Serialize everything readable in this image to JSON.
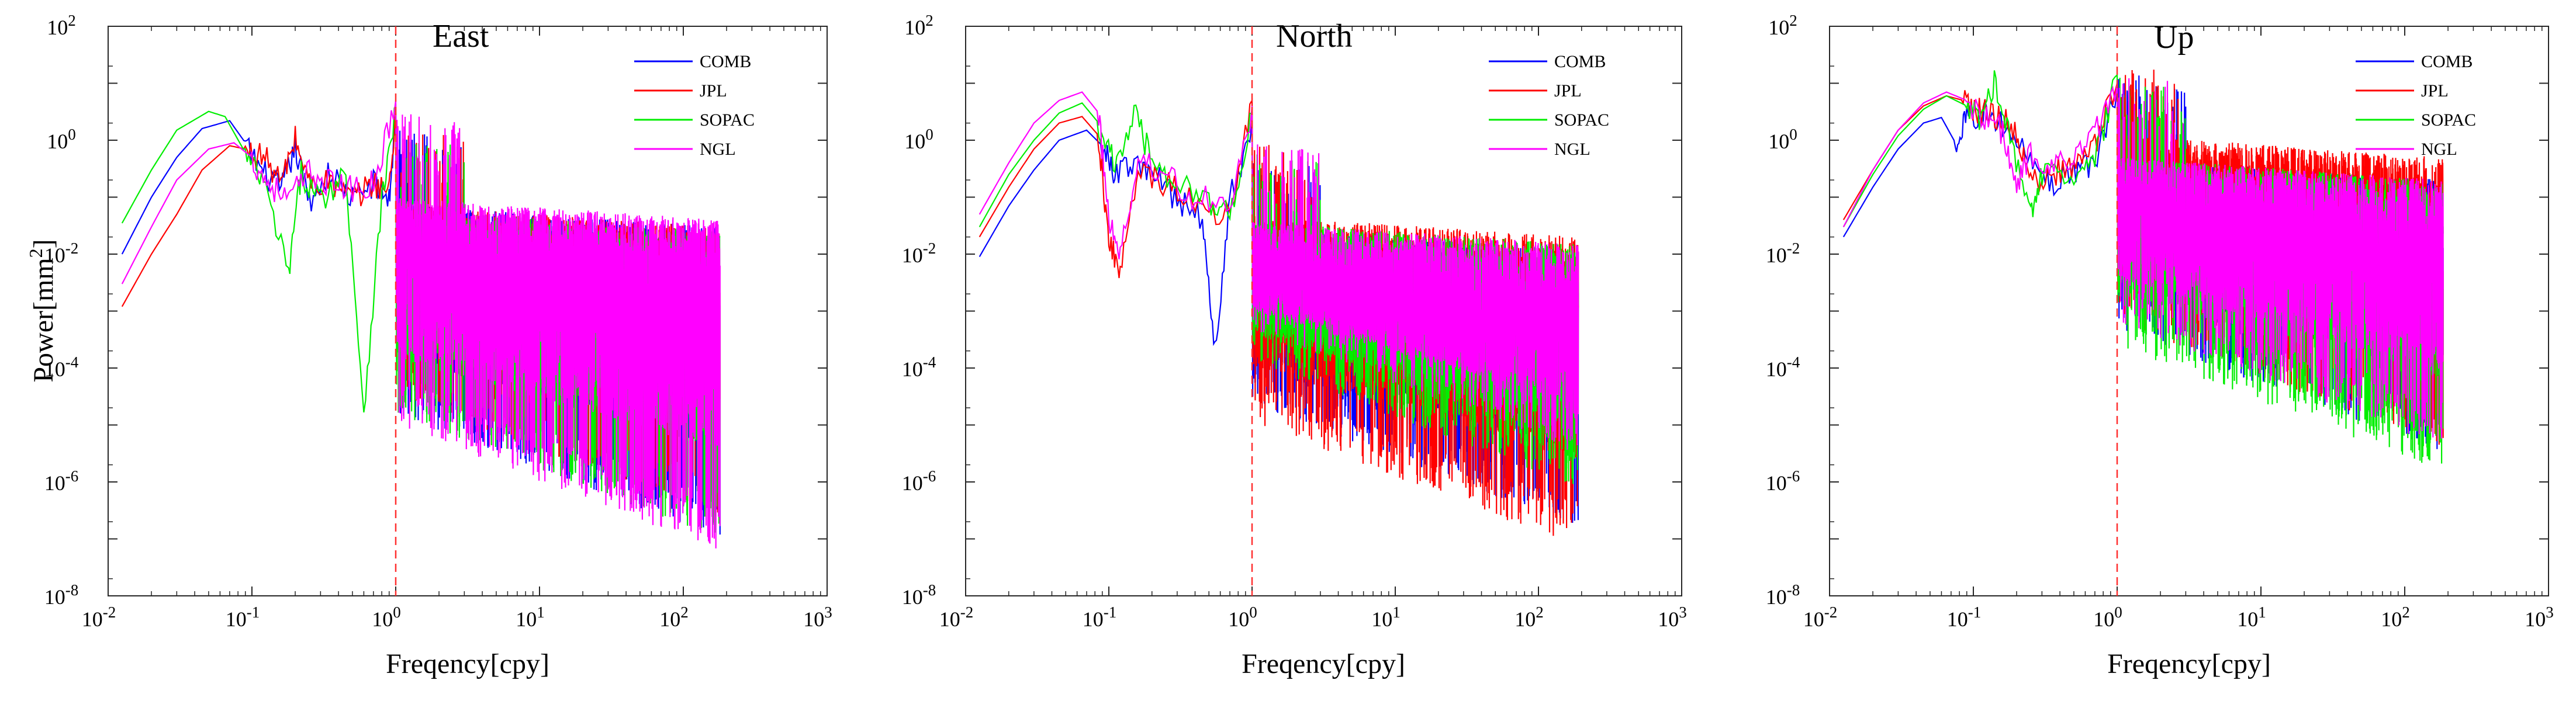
{
  "figure": {
    "ylabel_base": "Power[mm",
    "ylabel_exp": "2",
    "ylabel_end": "]",
    "xlabel": "Freqency[cpy]"
  },
  "chart_data": [
    {
      "type": "line",
      "title": "East",
      "xlabel": "Freqency[cpy]",
      "ylabel": "Power[mm^2]",
      "xscale": "log",
      "yscale": "log",
      "xlim": [
        0.01,
        1000
      ],
      "ylim": [
        1e-08,
        100
      ],
      "xticks": [
        "10^-2",
        "10^-1",
        "10^0",
        "10^1",
        "10^2",
        "10^3"
      ],
      "yticks": [
        "10^-8",
        "10^-6",
        "10^-4",
        "10^-2",
        "10^0",
        "10^2"
      ],
      "annotations": [
        {
          "type": "vertical-dashed-line",
          "x": 1,
          "color": "#ff3030"
        }
      ],
      "legend_position": "top-right",
      "series": [
        {
          "name": "COMB",
          "color": "#0000ff",
          "low_freq": [
            [
              0.0125,
              0.01
            ],
            [
              0.02,
              0.1
            ],
            [
              0.03,
              0.5
            ],
            [
              0.045,
              1.6
            ],
            [
              0.07,
              2.2
            ],
            [
              0.09,
              0.9
            ],
            [
              0.12,
              0.3
            ],
            [
              0.16,
              0.15
            ],
            [
              0.2,
              0.8
            ],
            [
              0.25,
              0.1
            ],
            [
              0.35,
              0.3
            ],
            [
              0.5,
              0.1
            ],
            [
              0.7,
              0.2
            ],
            [
              0.9,
              0.1
            ],
            [
              1.0,
              3
            ]
          ],
          "noise_mid": 0.005,
          "noise_top": 0.03,
          "noise_min": 1e-07,
          "fmax": 180
        },
        {
          "name": "JPL",
          "color": "#ff0000",
          "low_freq": [
            [
              0.0125,
              0.0012
            ],
            [
              0.02,
              0.01
            ],
            [
              0.03,
              0.05
            ],
            [
              0.045,
              0.3
            ],
            [
              0.07,
              0.8
            ],
            [
              0.09,
              0.7
            ],
            [
              0.12,
              0.6
            ],
            [
              0.16,
              0.2
            ],
            [
              0.2,
              1.2
            ],
            [
              0.25,
              0.2
            ],
            [
              0.35,
              0.2
            ],
            [
              0.5,
              0.1
            ],
            [
              0.7,
              0.2
            ],
            [
              0.9,
              0.15
            ],
            [
              1.0,
              3
            ]
          ],
          "noise_mid": 0.006,
          "noise_top": 0.03,
          "noise_min": 2e-07,
          "fmax": 180
        },
        {
          "name": "SOPAC",
          "color": "#00ee00",
          "low_freq": [
            [
              0.0125,
              0.035
            ],
            [
              0.02,
              0.3
            ],
            [
              0.03,
              1.5
            ],
            [
              0.05,
              3.2
            ],
            [
              0.065,
              2.6
            ],
            [
              0.09,
              0.6
            ],
            [
              0.12,
              0.2
            ],
            [
              0.18,
              0.005
            ],
            [
              0.22,
              0.3
            ],
            [
              0.3,
              0.1
            ],
            [
              0.45,
              0.3
            ],
            [
              0.6,
              2e-05
            ],
            [
              0.8,
              0.1
            ],
            [
              1.0,
              4
            ]
          ],
          "noise_mid": 0.004,
          "noise_top": 0.025,
          "noise_min": 1e-07,
          "fmax": 180
        },
        {
          "name": "NGL",
          "color": "#ff00ff",
          "low_freq": [
            [
              0.0125,
              0.003
            ],
            [
              0.02,
              0.03
            ],
            [
              0.03,
              0.2
            ],
            [
              0.05,
              0.7
            ],
            [
              0.075,
              0.9
            ],
            [
              0.1,
              0.5
            ],
            [
              0.13,
              0.2
            ],
            [
              0.18,
              0.1
            ],
            [
              0.25,
              0.3
            ],
            [
              0.35,
              0.2
            ],
            [
              0.5,
              0.15
            ],
            [
              0.7,
              0.2
            ],
            [
              1.0,
              5
            ]
          ],
          "noise_mid": 0.01,
          "noise_top": 0.04,
          "noise_min": 6e-08,
          "fmax": 180
        }
      ]
    },
    {
      "type": "line",
      "title": "North",
      "xlabel": "Freqency[cpy]",
      "ylabel": "",
      "xscale": "log",
      "yscale": "log",
      "xlim": [
        0.01,
        1000
      ],
      "ylim": [
        1e-08,
        100
      ],
      "xticks": [
        "10^-2",
        "10^-1",
        "10^0",
        "10^1",
        "10^2",
        "10^3"
      ],
      "yticks": [
        "10^-8",
        "10^-6",
        "10^-4",
        "10^-2",
        "10^0",
        "10^2"
      ],
      "annotations": [
        {
          "type": "vertical-dashed-line",
          "x": 1,
          "color": "#ff3030"
        }
      ],
      "legend_position": "top-right",
      "series": [
        {
          "name": "COMB",
          "color": "#0000ff",
          "low_freq": [
            [
              0.0125,
              0.009
            ],
            [
              0.02,
              0.07
            ],
            [
              0.03,
              0.3
            ],
            [
              0.045,
              1.0
            ],
            [
              0.07,
              1.5
            ],
            [
              0.09,
              0.8
            ],
            [
              0.11,
              0.3
            ],
            [
              0.15,
              0.4
            ],
            [
              0.2,
              0.3
            ],
            [
              0.3,
              0.1
            ],
            [
              0.45,
              0.05
            ],
            [
              0.55,
              0.0002
            ],
            [
              0.7,
              0.1
            ],
            [
              1.0,
              2
            ]
          ],
          "noise_mid": 0.002,
          "noise_top": 0.012,
          "noise_min": 1.5e-07,
          "fmax": 190
        },
        {
          "name": "JPL",
          "color": "#ff0000",
          "low_freq": [
            [
              0.0125,
              0.02
            ],
            [
              0.02,
              0.15
            ],
            [
              0.03,
              0.7
            ],
            [
              0.045,
              2.0
            ],
            [
              0.065,
              2.6
            ],
            [
              0.085,
              1.2
            ],
            [
              0.1,
              0.02
            ],
            [
              0.12,
              0.005
            ],
            [
              0.16,
              0.3
            ],
            [
              0.25,
              0.2
            ],
            [
              0.4,
              0.1
            ],
            [
              0.7,
              0.05
            ],
            [
              1.0,
              5
            ]
          ],
          "noise_mid": 0.003,
          "noise_top": 0.02,
          "noise_min": 7e-08,
          "fmax": 190
        },
        {
          "name": "SOPAC",
          "color": "#00ee00",
          "low_freq": [
            [
              0.0125,
              0.03
            ],
            [
              0.02,
              0.25
            ],
            [
              0.03,
              1.0
            ],
            [
              0.045,
              3.0
            ],
            [
              0.065,
              4.5
            ],
            [
              0.085,
              2.0
            ],
            [
              0.11,
              0.4
            ],
            [
              0.15,
              3.2
            ],
            [
              0.2,
              0.5
            ],
            [
              0.3,
              0.2
            ],
            [
              0.5,
              0.1
            ],
            [
              0.7,
              0.05
            ],
            [
              1.0,
              3
            ]
          ],
          "noise_mid": 0.002,
          "noise_top": 0.015,
          "noise_min": 8e-07,
          "fmax": 190
        },
        {
          "name": "NGL",
          "color": "#ff00ff",
          "low_freq": [
            [
              0.0125,
              0.05
            ],
            [
              0.02,
              0.4
            ],
            [
              0.03,
              2.0
            ],
            [
              0.045,
              5.0
            ],
            [
              0.065,
              7.0
            ],
            [
              0.085,
              3.0
            ],
            [
              0.1,
              0.05
            ],
            [
              0.12,
              0.01
            ],
            [
              0.16,
              0.5
            ],
            [
              0.25,
              0.3
            ],
            [
              0.4,
              0.1
            ],
            [
              0.7,
              0.1
            ],
            [
              1.0,
              4
            ]
          ],
          "noise_mid": 0.003,
          "noise_top": 0.015,
          "noise_min": 3e-06,
          "fmax": 190
        }
      ]
    },
    {
      "type": "line",
      "title": "Up",
      "xlabel": "Freqency[cpy]",
      "ylabel": "",
      "xscale": "log",
      "yscale": "log",
      "xlim": [
        0.01,
        1000
      ],
      "ylim": [
        1e-08,
        100
      ],
      "xticks": [
        "10^-2",
        "10^-1",
        "10^0",
        "10^1",
        "10^2",
        "10^3"
      ],
      "yticks": [
        "10^-8",
        "10^-6",
        "10^-4",
        "10^-2",
        "10^0",
        "10^2"
      ],
      "annotations": [
        {
          "type": "vertical-dashed-line",
          "x": 1,
          "color": "#ff3030"
        }
      ],
      "legend_position": "top-right",
      "series": [
        {
          "name": "COMB",
          "color": "#0000ff",
          "low_freq": [
            [
              0.0125,
              0.02
            ],
            [
              0.02,
              0.15
            ],
            [
              0.03,
              0.7
            ],
            [
              0.045,
              2.0
            ],
            [
              0.06,
              2.5
            ],
            [
              0.075,
              0.9
            ],
            [
              0.09,
              2.5
            ],
            [
              0.12,
              4.0
            ],
            [
              0.16,
              2.0
            ],
            [
              0.25,
              0.5
            ],
            [
              0.35,
              0.2
            ],
            [
              0.5,
              0.3
            ],
            [
              0.7,
              0.5
            ],
            [
              1.0,
              8
            ]
          ],
          "noise_mid": 0.05,
          "noise_top": 0.2,
          "noise_min": 3e-06,
          "fmax": 185
        },
        {
          "name": "JPL",
          "color": "#ff0000",
          "low_freq": [
            [
              0.0125,
              0.04
            ],
            [
              0.02,
              0.3
            ],
            [
              0.03,
              1.5
            ],
            [
              0.045,
              4.0
            ],
            [
              0.065,
              6.0
            ],
            [
              0.085,
              5.0
            ],
            [
              0.11,
              3.5
            ],
            [
              0.15,
              3.0
            ],
            [
              0.2,
              1.5
            ],
            [
              0.25,
              0.2
            ],
            [
              0.35,
              0.3
            ],
            [
              0.5,
              0.4
            ],
            [
              0.7,
              1.0
            ],
            [
              1.0,
              10
            ]
          ],
          "noise_mid": 0.08,
          "noise_top": 0.5,
          "noise_min": 4e-06,
          "fmax": 185
        },
        {
          "name": "SOPAC",
          "color": "#00ee00",
          "low_freq": [
            [
              0.0125,
              0.03
            ],
            [
              0.02,
              0.25
            ],
            [
              0.03,
              1.2
            ],
            [
              0.045,
              3.5
            ],
            [
              0.065,
              6.0
            ],
            [
              0.09,
              4.0
            ],
            [
              0.11,
              3.0
            ],
            [
              0.14,
              12.0
            ],
            [
              0.18,
              1.5
            ],
            [
              0.25,
              0.05
            ],
            [
              0.3,
              0.3
            ],
            [
              0.5,
              0.2
            ],
            [
              0.7,
              0.5
            ],
            [
              1.0,
              14
            ]
          ],
          "noise_mid": 0.04,
          "noise_top": 0.2,
          "noise_min": 1.5e-06,
          "fmax": 185
        },
        {
          "name": "NGL",
          "color": "#ff00ff",
          "low_freq": [
            [
              0.0125,
              0.03
            ],
            [
              0.02,
              0.3
            ],
            [
              0.03,
              1.5
            ],
            [
              0.045,
              4.5
            ],
            [
              0.065,
              7.0
            ],
            [
              0.09,
              5.0
            ],
            [
              0.12,
              3.0
            ],
            [
              0.16,
              1.5
            ],
            [
              0.2,
              0.2
            ],
            [
              0.25,
              0.6
            ],
            [
              0.35,
              0.4
            ],
            [
              0.5,
              0.6
            ],
            [
              0.7,
              1.5
            ],
            [
              1.0,
              10
            ]
          ],
          "noise_mid": 0.05,
          "noise_top": 0.2,
          "noise_min": 4e-06,
          "fmax": 185
        }
      ]
    }
  ]
}
